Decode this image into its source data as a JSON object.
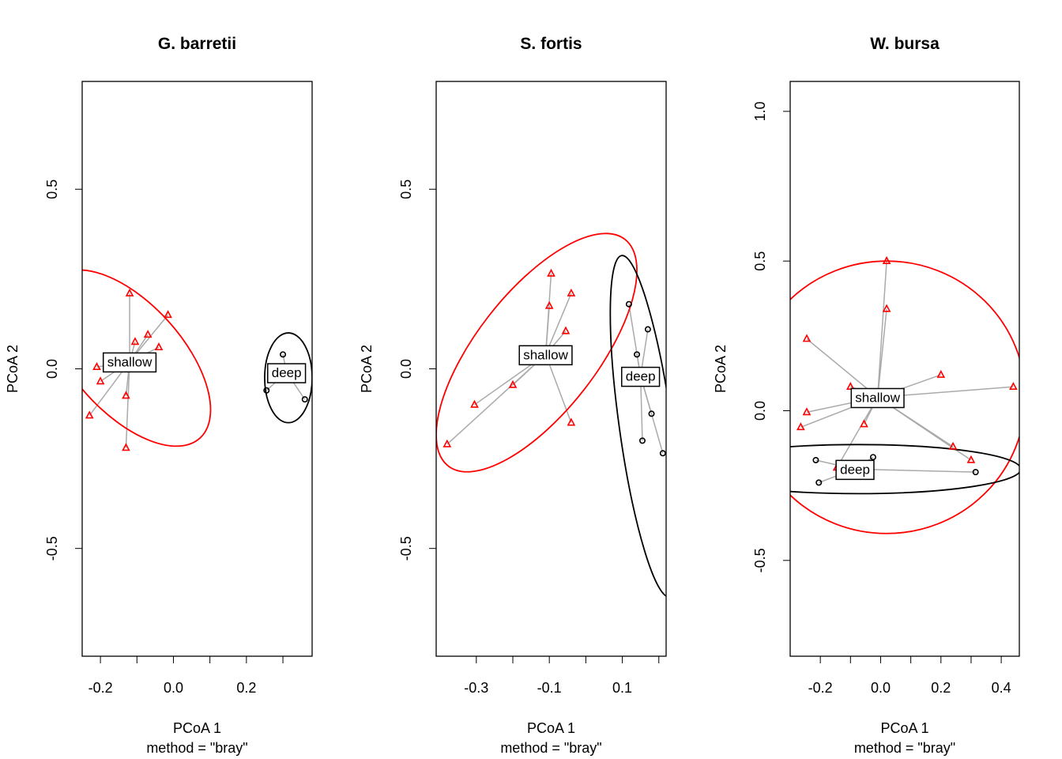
{
  "chart_data": [
    {
      "type": "scatter",
      "title": "G. barretii",
      "xlabel": "PCoA 1",
      "sublabel": "method = \"bray\"",
      "ylabel": "PCoA 2",
      "xlim": [
        -0.25,
        0.38
      ],
      "ylim": [
        -0.8,
        0.8
      ],
      "xticks": [
        -0.2,
        -0.1,
        0.0,
        0.1,
        0.2,
        0.3
      ],
      "xtick_labels": [
        "-0.2",
        "",
        "0.0",
        "",
        "0.2",
        ""
      ],
      "yticks": [
        -0.5,
        0.0,
        0.5
      ],
      "ytick_labels": [
        "-0.5",
        "0.0",
        "0.5"
      ],
      "groups": [
        {
          "name": "shallow",
          "color": "#FF0000",
          "marker": "triangle",
          "centroid": [
            -0.12,
            0.02
          ],
          "ellipse": {
            "cx": -0.125,
            "cy": 0.03,
            "rx": 0.15,
            "ry": 0.3,
            "angle": -42
          },
          "points": [
            [
              -0.12,
              0.21
            ],
            [
              -0.015,
              0.15
            ],
            [
              -0.07,
              0.095
            ],
            [
              -0.105,
              0.075
            ],
            [
              -0.04,
              0.06
            ],
            [
              -0.21,
              0.005
            ],
            [
              -0.2,
              -0.035
            ],
            [
              -0.13,
              -0.075
            ],
            [
              -0.23,
              -0.13
            ],
            [
              -0.13,
              -0.22
            ]
          ]
        },
        {
          "name": "deep",
          "color": "#000000",
          "marker": "circle",
          "centroid": [
            0.31,
            -0.01
          ],
          "ellipse": {
            "cx": 0.315,
            "cy": -0.025,
            "rx": 0.065,
            "ry": 0.125,
            "angle": 0
          },
          "points": [
            [
              0.3,
              0.04
            ],
            [
              0.33,
              0.0
            ],
            [
              0.255,
              -0.06
            ],
            [
              0.36,
              -0.085
            ]
          ]
        }
      ]
    },
    {
      "type": "scatter",
      "title": "S. fortis",
      "xlabel": "PCoA 1",
      "sublabel": "method = \"bray\"",
      "ylabel": "PCoA 2",
      "xlim": [
        -0.41,
        0.22
      ],
      "ylim": [
        -0.8,
        0.8
      ],
      "xticks": [
        -0.3,
        -0.2,
        -0.1,
        0.0,
        0.1,
        0.2
      ],
      "xtick_labels": [
        "-0.3",
        "",
        "-0.1",
        "",
        "0.1",
        ""
      ],
      "yticks": [
        -0.5,
        0.0,
        0.5
      ],
      "ytick_labels": [
        "-0.5",
        "0.0",
        "0.5"
      ],
      "groups": [
        {
          "name": "shallow",
          "color": "#FF0000",
          "marker": "triangle",
          "centroid": [
            -0.11,
            0.04
          ],
          "ellipse": {
            "cx": -0.135,
            "cy": 0.045,
            "rx": 0.165,
            "ry": 0.4,
            "angle": 38
          },
          "points": [
            [
              -0.095,
              0.265
            ],
            [
              -0.04,
              0.21
            ],
            [
              -0.1,
              0.175
            ],
            [
              -0.055,
              0.105
            ],
            [
              -0.2,
              -0.045
            ],
            [
              -0.305,
              -0.1
            ],
            [
              -0.04,
              -0.15
            ],
            [
              -0.38,
              -0.21
            ]
          ]
        },
        {
          "name": "deep",
          "color": "#000000",
          "marker": "circle",
          "centroid": [
            0.15,
            -0.02
          ],
          "ellipse": {
            "cx": 0.164,
            "cy": -0.16,
            "rx": 0.072,
            "ry": 0.48,
            "angle": -8
          },
          "points": [
            [
              0.118,
              0.18
            ],
            [
              0.17,
              0.11
            ],
            [
              0.14,
              0.04
            ],
            [
              0.18,
              -0.125
            ],
            [
              0.155,
              -0.2
            ],
            [
              0.211,
              -0.235
            ]
          ]
        }
      ]
    },
    {
      "type": "scatter",
      "title": "W. bursa",
      "xlabel": "PCoA 1",
      "sublabel": "method = \"bray\"",
      "ylabel": "PCoA 2",
      "xlim": [
        -0.3,
        0.46
      ],
      "ylim": [
        -0.82,
        1.1
      ],
      "xticks": [
        -0.2,
        -0.1,
        0.0,
        0.1,
        0.2,
        0.3,
        0.4
      ],
      "xtick_labels": [
        "-0.2",
        "",
        "0.0",
        "",
        "0.2",
        "",
        "0.4"
      ],
      "yticks": [
        -0.5,
        0.0,
        0.5,
        1.0
      ],
      "ytick_labels": [
        "-0.5",
        "0.0",
        "0.5",
        "1.0"
      ],
      "groups": [
        {
          "name": "shallow",
          "color": "#FF0000",
          "marker": "triangle",
          "centroid": [
            -0.01,
            0.045
          ],
          "ellipse": {
            "cx": 0.02,
            "cy": 0.045,
            "rx": 0.46,
            "ry": 0.455,
            "angle": 0
          },
          "points": [
            [
              0.02,
              0.5
            ],
            [
              0.02,
              0.34
            ],
            [
              -0.245,
              0.24
            ],
            [
              0.2,
              0.12
            ],
            [
              0.44,
              0.08
            ],
            [
              -0.1,
              0.08
            ],
            [
              -0.245,
              -0.005
            ],
            [
              -0.055,
              -0.045
            ],
            [
              -0.265,
              -0.055
            ],
            [
              0.24,
              -0.12
            ],
            [
              0.3,
              -0.165
            ],
            [
              -0.145,
              -0.19
            ]
          ]
        },
        {
          "name": "deep",
          "color": "#000000",
          "marker": "circle",
          "centroid": [
            -0.085,
            -0.195
          ],
          "ellipse": {
            "cx": -0.075,
            "cy": -0.195,
            "rx": 0.54,
            "ry": 0.082,
            "angle": 0
          },
          "points": [
            [
              -0.025,
              -0.155
            ],
            [
              -0.215,
              -0.165
            ],
            [
              0.315,
              -0.205
            ],
            [
              -0.205,
              -0.24
            ]
          ]
        }
      ]
    }
  ]
}
